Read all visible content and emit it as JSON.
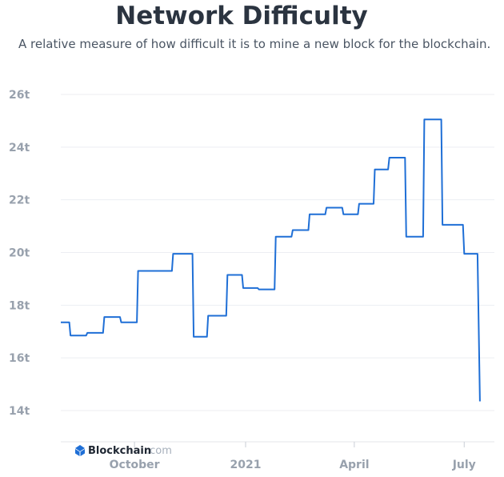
{
  "chart_data": {
    "type": "line",
    "title": "Network Difficulty",
    "subtitle": "A relative measure of how difficult it is to mine a new block for the blockchain.",
    "ylim": [
      13.5,
      26.3
    ],
    "yticks": [
      14,
      16,
      18,
      20,
      22,
      24,
      26
    ],
    "ytick_labels": [
      "14t",
      "16t",
      "18t",
      "20t",
      "22t",
      "24t",
      "26t"
    ],
    "xlim": [
      "2020-08-01",
      "2021-07-26"
    ],
    "xticks": [
      "2020-10-01",
      "2021-01-01",
      "2021-04-01",
      "2021-07-01"
    ],
    "xtick_labels": [
      "October",
      "2021",
      "April",
      "July"
    ],
    "grid": true,
    "color": "#1f6fd6",
    "series": [
      {
        "x": [
          "2020-08-01",
          "2020-08-08",
          "2020-08-09",
          "2020-08-22",
          "2020-08-23",
          "2020-09-05",
          "2020-09-06",
          "2020-09-19",
          "2020-09-20",
          "2020-10-03",
          "2020-10-04",
          "2020-10-17",
          "2020-10-18",
          "2020-11-01",
          "2020-11-02",
          "2020-11-18",
          "2020-11-19",
          "2020-11-30",
          "2020-12-01",
          "2020-12-16",
          "2020-12-17",
          "2020-12-29",
          "2020-12-30",
          "2021-01-11",
          "2021-01-12",
          "2021-01-25",
          "2021-01-26",
          "2021-02-08",
          "2021-02-09",
          "2021-02-22",
          "2021-02-23",
          "2021-03-08",
          "2021-03-09",
          "2021-03-22",
          "2021-03-23",
          "2021-04-04",
          "2021-04-05",
          "2021-04-17",
          "2021-04-18",
          "2021-04-29",
          "2021-04-30",
          "2021-05-13",
          "2021-05-14",
          "2021-05-28",
          "2021-05-29",
          "2021-06-12",
          "2021-06-13",
          "2021-06-30",
          "2021-07-01",
          "2021-07-12",
          "2021-07-14"
        ],
        "y": [
          17.35,
          17.35,
          16.85,
          16.85,
          16.95,
          16.95,
          17.55,
          17.55,
          17.35,
          17.35,
          19.3,
          19.3,
          19.3,
          19.3,
          19.95,
          19.95,
          16.8,
          16.8,
          17.6,
          17.6,
          19.15,
          19.15,
          18.65,
          18.65,
          18.6,
          18.6,
          20.6,
          20.6,
          20.85,
          20.85,
          21.45,
          21.45,
          21.7,
          21.7,
          21.45,
          21.45,
          21.85,
          21.85,
          23.15,
          23.15,
          23.6,
          23.6,
          20.6,
          20.6,
          25.05,
          25.05,
          21.05,
          21.05,
          19.95,
          19.95,
          14.35
        ]
      }
    ]
  },
  "watermark": {
    "brand": "Blockchain",
    "suffix": ".com"
  }
}
